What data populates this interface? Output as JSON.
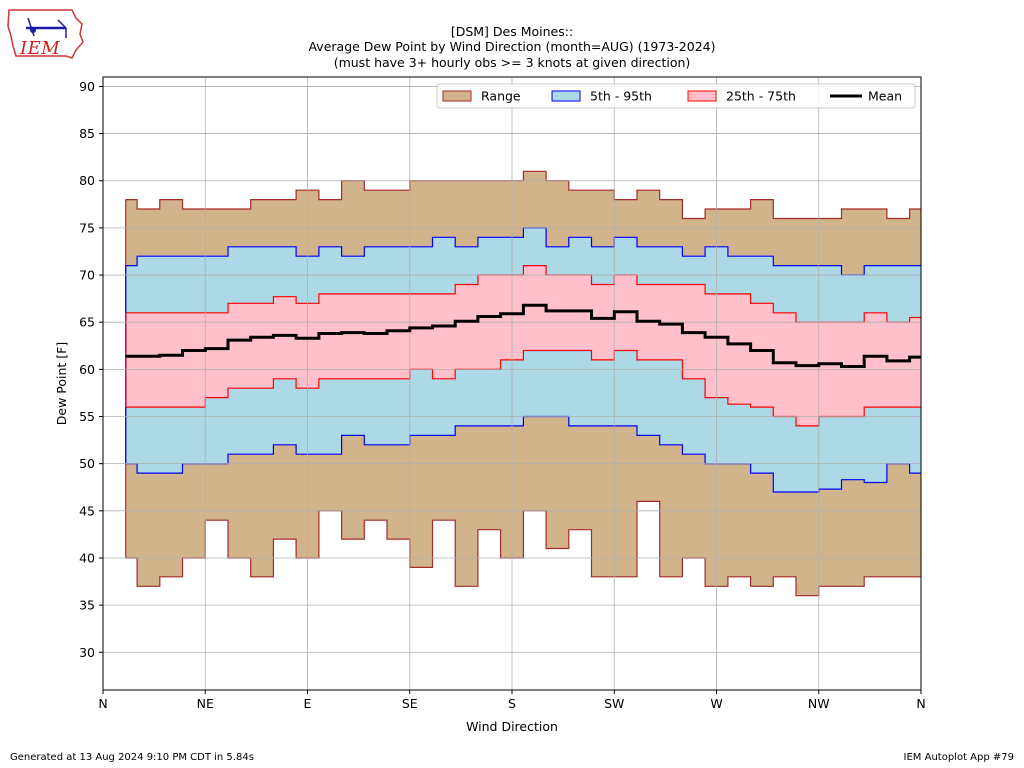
{
  "header": {
    "title_line1": "[DSM] Des Moines::",
    "title_line2": "Average Dew Point by Wind Direction (month=AUG) (1973-2024)",
    "title_line3": "(must have 3+ hourly obs >= 3 knots at given direction)"
  },
  "logo": {
    "text": "IEM",
    "icon": "iowa-state-outline-icon"
  },
  "footer": {
    "generated": "Generated at 13 Aug 2024 9:10 PM CDT in 5.84s",
    "app": "IEM Autoplot App #79"
  },
  "colors": {
    "range_fill": "#d2b48c",
    "range_edge": "#a52a2a",
    "p5_95_fill": "#add8e6",
    "p5_95_edge": "#0000ff",
    "p25_75_fill": "#ffc0cb",
    "p25_75_edge": "#ff0000",
    "mean_line": "#000000",
    "grid": "#b0b0b0"
  },
  "chart_data": {
    "type": "area",
    "xlabel": "Wind Direction",
    "ylabel": "Dew Point [F]",
    "xlim": [
      0,
      360
    ],
    "ylim": [
      26,
      91
    ],
    "grid": true,
    "legend_position": "top-right",
    "x_ticks": [
      0,
      45,
      90,
      135,
      180,
      225,
      270,
      315,
      360
    ],
    "x_tick_labels": [
      "N",
      "NE",
      "E",
      "SE",
      "S",
      "SW",
      "W",
      "NW",
      "N"
    ],
    "y_ticks": [
      30,
      35,
      40,
      45,
      50,
      55,
      60,
      65,
      70,
      75,
      80,
      85,
      90
    ],
    "y_tick_labels": [
      "30",
      "35",
      "40",
      "45",
      "50",
      "55",
      "60",
      "65",
      "70",
      "75",
      "80",
      "85",
      "90"
    ],
    "x": [
      10,
      15,
      25,
      35,
      45,
      55,
      65,
      75,
      85,
      95,
      105,
      115,
      125,
      135,
      145,
      155,
      165,
      175,
      185,
      195,
      205,
      215,
      225,
      235,
      245,
      255,
      265,
      275,
      285,
      295,
      305,
      315,
      325,
      335,
      345,
      355,
      360
    ],
    "legend": [
      "Range",
      "5th - 95th",
      "25th - 75th",
      "Mean"
    ],
    "series": [
      {
        "name": "Range",
        "kind": "band",
        "low": [
          40,
          37,
          38,
          40,
          44,
          40,
          38,
          42,
          40,
          45,
          42,
          44,
          42,
          39,
          44,
          37,
          43,
          40,
          45,
          41,
          43,
          38,
          38,
          46,
          38,
          40,
          37,
          38,
          37,
          38,
          36,
          37,
          37,
          38,
          38,
          38,
          38
        ],
        "high": [
          78,
          77,
          78,
          77,
          77,
          77,
          78,
          78,
          79,
          78,
          80,
          79,
          79,
          80,
          80,
          80,
          80,
          80,
          81,
          80,
          79,
          79,
          78,
          79,
          78,
          76,
          77,
          77,
          78,
          76,
          76,
          76,
          77,
          77,
          76,
          77,
          77
        ]
      },
      {
        "name": "5th - 95th",
        "kind": "band",
        "low": [
          50,
          49,
          49,
          50,
          50,
          51,
          51,
          52,
          51,
          51,
          53,
          52,
          52,
          53,
          53,
          54,
          54,
          54,
          55,
          55,
          54,
          54,
          54,
          53,
          52,
          51,
          50,
          50,
          49,
          47,
          47,
          47.3,
          48.3,
          48,
          50,
          49,
          49
        ]
      },
      {
        "name": "25th - 75th",
        "kind": "band",
        "low": [
          56,
          56,
          56,
          56,
          57,
          58,
          58,
          59,
          58,
          59,
          59,
          59,
          59,
          60,
          59,
          60,
          60,
          61,
          62,
          62,
          62,
          61,
          62,
          61,
          61,
          59,
          57,
          56.3,
          56,
          55,
          54,
          55,
          55,
          56,
          56,
          56,
          56
        ],
        "high": [
          66,
          66,
          66,
          66,
          66,
          67,
          67,
          67.7,
          67,
          68,
          68,
          68,
          68,
          68,
          68,
          69,
          70,
          70,
          71,
          70,
          70,
          69,
          70,
          69,
          69,
          69,
          68,
          68,
          67,
          66,
          65,
          65,
          65,
          66,
          65,
          65.5,
          65.5
        ]
      },
      {
        "name": "Mean",
        "kind": "line",
        "values": [
          61.4,
          61.4,
          61.5,
          62.0,
          62.2,
          63.1,
          63.4,
          63.6,
          63.3,
          63.8,
          63.9,
          63.8,
          64.1,
          64.4,
          64.6,
          65.1,
          65.6,
          65.9,
          66.8,
          66.2,
          66.2,
          65.4,
          66.1,
          65.1,
          64.8,
          63.9,
          63.4,
          62.7,
          62.0,
          60.7,
          60.4,
          60.6,
          60.3,
          61.4,
          60.9,
          61.3,
          61.3
        ]
      }
    ]
  }
}
